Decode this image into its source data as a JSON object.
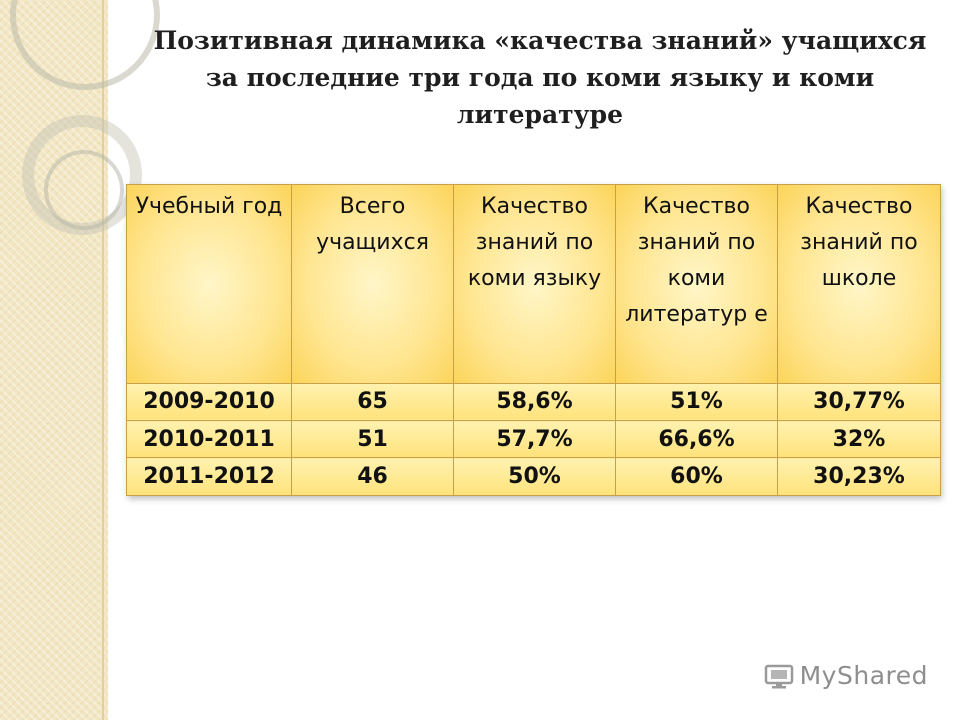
{
  "title": "Позитивная динамика «качества знаний» учащихся за последние три года по коми языку и коми литературе",
  "table": {
    "headers": [
      "Учебный год",
      "Всего учащихся",
      "Качество знаний по коми языку",
      "Качество знаний по коми литератур е",
      "Качество знаний по школе"
    ],
    "rows": [
      [
        "2009-2010",
        "65",
        "58,6%",
        "51%",
        "30,77%"
      ],
      [
        "2010-2011",
        "51",
        "57,7%",
        "66,6%",
        "32%"
      ],
      [
        "2011-2012",
        "46",
        "50%",
        "60%",
        "30,23%"
      ]
    ]
  },
  "watermark": {
    "text": "MyShared",
    "icon": "myshared-logo-icon"
  }
}
